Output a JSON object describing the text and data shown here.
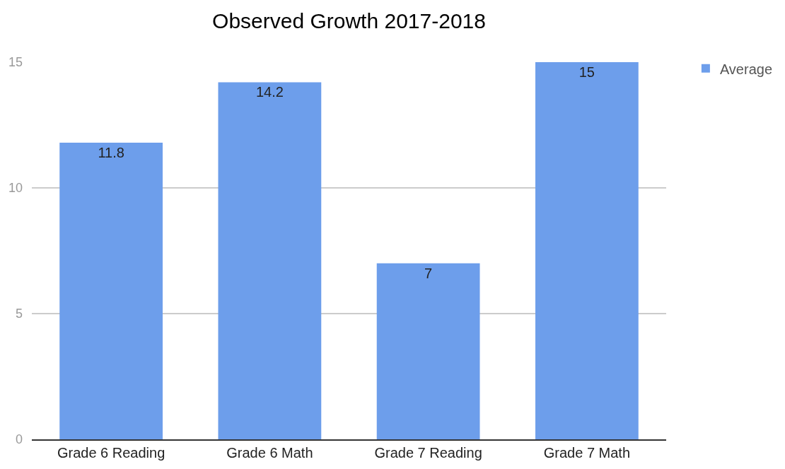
{
  "chart_data": {
    "type": "bar",
    "title": "Observed Growth 2017-2018",
    "categories": [
      "Grade 6 Reading",
      "Grade 6 Math",
      "Grade 7 Reading",
      "Grade 7 Math"
    ],
    "series": [
      {
        "name": "Average",
        "color": "#6d9eeb",
        "values": [
          11.8,
          14.2,
          7,
          15
        ]
      }
    ],
    "ylim": [
      0,
      15
    ],
    "yticks": [
      0,
      5,
      10,
      15
    ],
    "grid": "y",
    "legend": "top right",
    "data_labels": true
  }
}
